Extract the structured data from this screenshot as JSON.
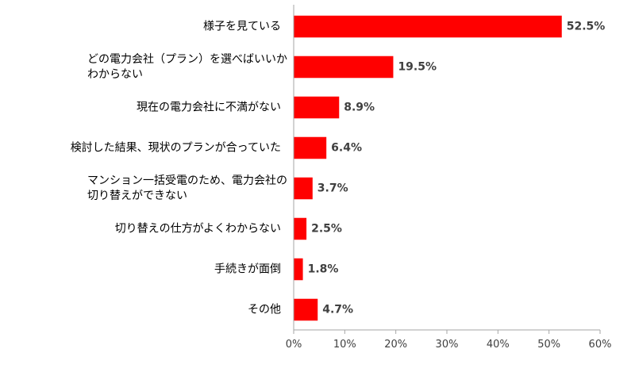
{
  "chart_data": {
    "type": "bar",
    "orientation": "horizontal",
    "title": "",
    "xlabel": "",
    "ylabel": "",
    "categories": [
      [
        "様子を見ている"
      ],
      [
        "どの電力会社（プラン）を選べばいいか",
        "わからない"
      ],
      [
        "現在の電力会社に不満がない"
      ],
      [
        "検討した結果、現状のプランが合っていた"
      ],
      [
        "マンション一括受電のため、電力会社の",
        "切り替えができない"
      ],
      [
        "切り替えの仕方がよくわからない"
      ],
      [
        "手続きが面倒"
      ],
      [
        "その他"
      ]
    ],
    "values": [
      52.5,
      19.5,
      8.9,
      6.4,
      3.7,
      2.5,
      1.8,
      4.7
    ],
    "data_labels": [
      "52.5%",
      "19.5%",
      "8.9%",
      "6.4%",
      "3.7%",
      "2.5%",
      "1.8%",
      "4.7%"
    ],
    "xlim": [
      0,
      60
    ],
    "x_ticks": [
      0,
      10,
      20,
      30,
      40,
      50,
      60
    ],
    "x_tick_labels": [
      "0%",
      "10%",
      "20%",
      "30%",
      "40%",
      "50%",
      "60%"
    ],
    "grid": false,
    "legend": "none",
    "bar_color": "#ff0000",
    "axis_color": "#a6a6a6",
    "text_color": "#000000"
  }
}
